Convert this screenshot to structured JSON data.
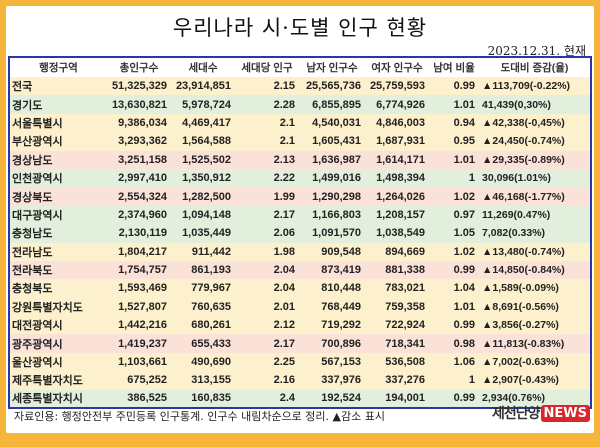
{
  "title": "우리나라 시·도별 인구 현황",
  "date": "2023.12.31. 현재",
  "headers": [
    "행정구역",
    "총인구수",
    "세대수",
    "세대당 인구",
    "남자 인구수",
    "여자 인구수",
    "남여 비율",
    "도대비 증감(율)"
  ],
  "rows": [
    {
      "name": "전국",
      "total": "51,325,329",
      "households": "23,914,851",
      "per": "2.15",
      "male": "25,565,736",
      "female": "25,759,593",
      "ratio": "0.99",
      "change": "▲113,709(-0.22%)",
      "color": "#fdf0cc"
    },
    {
      "name": "경기도",
      "total": "13,630,821",
      "households": "5,978,724",
      "per": "2.28",
      "male": "6,855,895",
      "female": "6,774,926",
      "ratio": "1.01",
      "change": "41,439(0,30%)",
      "color": "#e2efdc"
    },
    {
      "name": "서울특별시",
      "total": "9,386,034",
      "households": "4,469,417",
      "per": "2.1",
      "male": "4,540,031",
      "female": "4,846,003",
      "ratio": "0.94",
      "change": "▲42,338(-0,45%)",
      "color": "#fdf0cc"
    },
    {
      "name": "부산광역시",
      "total": "3,293,362",
      "households": "1,564,588",
      "per": "2.1",
      "male": "1,605,431",
      "female": "1,687,931",
      "ratio": "0.95",
      "change": "▲24,450(-0.74%)",
      "color": "#fdf0cc"
    },
    {
      "name": "경상남도",
      "total": "3,251,158",
      "households": "1,525,502",
      "per": "2.13",
      "male": "1,636,987",
      "female": "1,614,171",
      "ratio": "1.01",
      "change": "▲29,335(-0.89%)",
      "color": "#fbe2d9"
    },
    {
      "name": "인천광역시",
      "total": "2,997,410",
      "households": "1,350,912",
      "per": "2.22",
      "male": "1,499,016",
      "female": "1,498,394",
      "ratio": "1",
      "change": "30,096(1.01%)",
      "color": "#e2efdc"
    },
    {
      "name": "경상북도",
      "total": "2,554,324",
      "households": "1,282,500",
      "per": "1.99",
      "male": "1,290,298",
      "female": "1,264,026",
      "ratio": "1.02",
      "change": "▲46,168(-1.77%)",
      "color": "#fbe2d9"
    },
    {
      "name": "대구광역시",
      "total": "2,374,960",
      "households": "1,094,148",
      "per": "2.17",
      "male": "1,166,803",
      "female": "1,208,157",
      "ratio": "0.97",
      "change": "11,269(0.47%)",
      "color": "#e2efdc"
    },
    {
      "name": "충청남도",
      "total": "2,130,119",
      "households": "1,035,449",
      "per": "2.06",
      "male": "1,091,570",
      "female": "1,038,549",
      "ratio": "1.05",
      "change": "7,082(0.33%)",
      "color": "#e2efdc"
    },
    {
      "name": "전라남도",
      "total": "1,804,217",
      "households": "911,442",
      "per": "1.98",
      "male": "909,548",
      "female": "894,669",
      "ratio": "1.02",
      "change": "▲13,480(-0.74%)",
      "color": "#fdf0cc"
    },
    {
      "name": "전라북도",
      "total": "1,754,757",
      "households": "861,193",
      "per": "2.04",
      "male": "873,419",
      "female": "881,338",
      "ratio": "0.99",
      "change": "▲14,850(-0.84%)",
      "color": "#fbe2d9"
    },
    {
      "name": "충청북도",
      "total": "1,593,469",
      "households": "779,967",
      "per": "2.04",
      "male": "810,448",
      "female": "783,021",
      "ratio": "1.04",
      "change": "▲1,589(-0.09%)",
      "color": "#fdf0cc"
    },
    {
      "name": "강원특별자치도",
      "total": "1,527,807",
      "households": "760,635",
      "per": "2.01",
      "male": "768,449",
      "female": "759,358",
      "ratio": "1.01",
      "change": "▲8,691(-0.56%)",
      "color": "#fdf0cc"
    },
    {
      "name": "대전광역시",
      "total": "1,442,216",
      "households": "680,261",
      "per": "2.12",
      "male": "719,292",
      "female": "722,924",
      "ratio": "0.99",
      "change": "▲3,856(-0.27%)",
      "color": "#fdf0cc"
    },
    {
      "name": "광주광역시",
      "total": "1,419,237",
      "households": "655,433",
      "per": "2.17",
      "male": "700,896",
      "female": "718,341",
      "ratio": "0.98",
      "change": "▲11,813(-0.83%)",
      "color": "#fbe2d9"
    },
    {
      "name": "울산광역시",
      "total": "1,103,661",
      "households": "490,690",
      "per": "2.25",
      "male": "567,153",
      "female": "536,508",
      "ratio": "1.06",
      "change": "▲7,002(-0.63%)",
      "color": "#fdf0cc"
    },
    {
      "name": "제주특별자치도",
      "total": "675,252",
      "households": "313,155",
      "per": "2.16",
      "male": "337,976",
      "female": "337,276",
      "ratio": "1",
      "change": "▲2,907(-0.43%)",
      "color": "#fdf0cc"
    },
    {
      "name": "세종특별자치시",
      "total": "386,525",
      "households": "160,835",
      "per": "2.4",
      "male": "192,524",
      "female": "194,001",
      "ratio": "0.99",
      "change": "2,934(0.76%)",
      "color": "#e2efdc"
    }
  ],
  "footer": "자료인용: 행정안전부 주민등록 인구통계. 인구수 내림차순으로 정리. ▲감소 표시",
  "logo": {
    "korean": "제천단양",
    "news": "NEWS"
  },
  "colors": {
    "frame": "#f7b43a",
    "table_border": "#2a35a8",
    "logo_red": "#d9262c"
  }
}
